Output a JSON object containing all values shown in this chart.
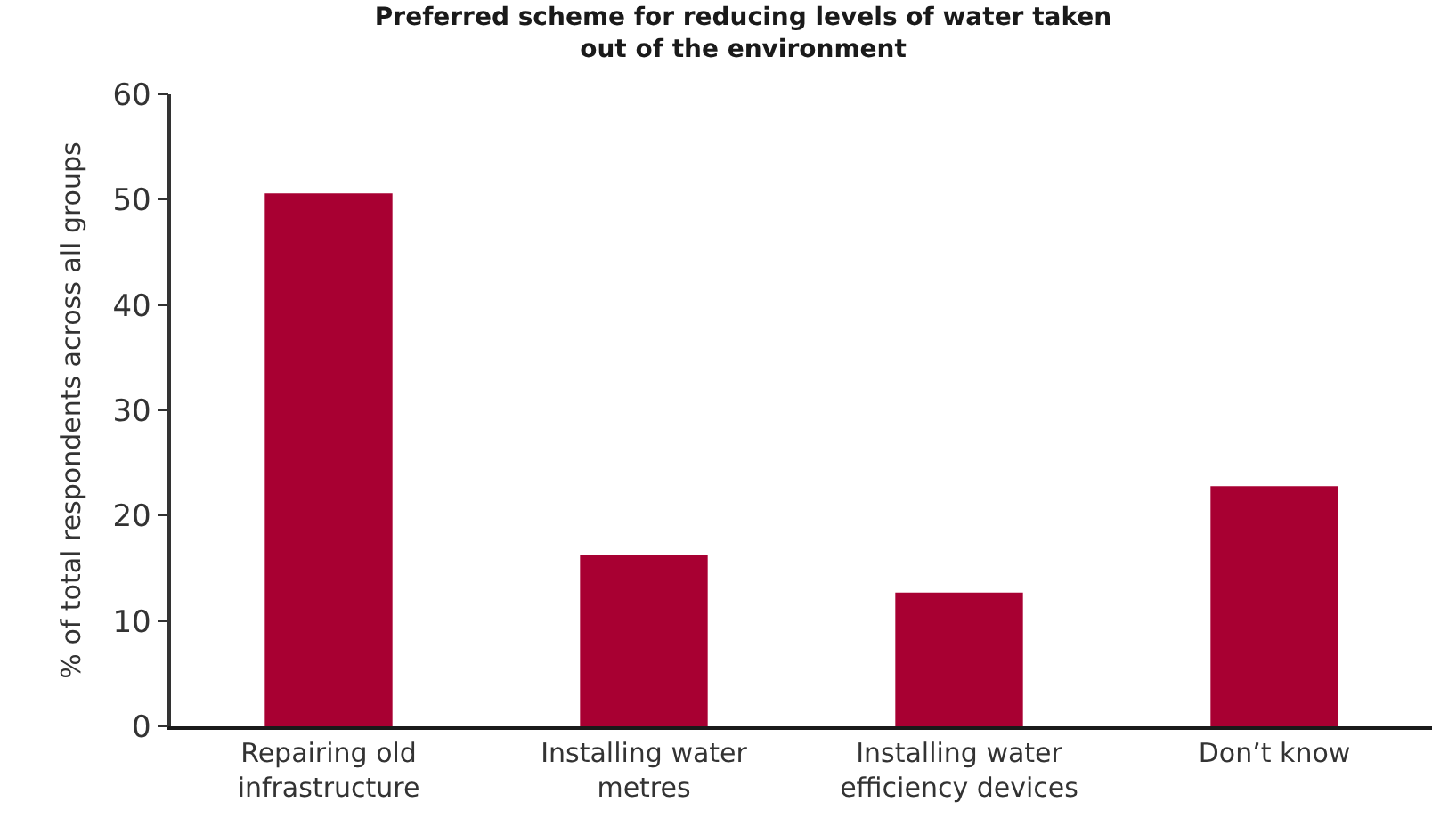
{
  "chart_data": {
    "type": "bar",
    "title": "Preferred scheme for reducing levels of water taken out of the environment",
    "ylabel": "% of total respondents across all groups",
    "categories": [
      "Repairing old infrastructure",
      "Installing water metres",
      "Installing water efficiency devices",
      "Don’t know"
    ],
    "values": [
      50.6,
      16.3,
      12.7,
      22.8
    ],
    "color": "#a80032",
    "ylim": [
      0,
      60
    ],
    "yticks": [
      0,
      10,
      20,
      30,
      40,
      50,
      60
    ]
  }
}
